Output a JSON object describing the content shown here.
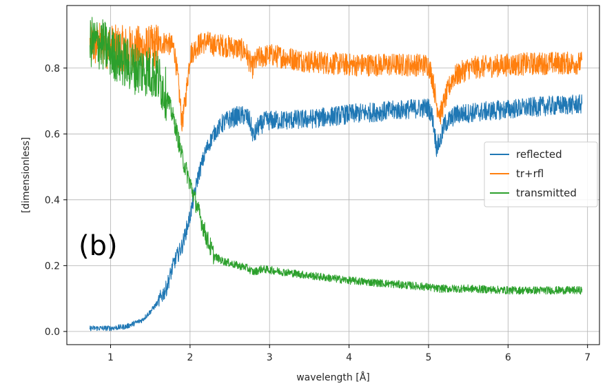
{
  "chart_data": {
    "type": "line",
    "xlabel": "wavelength [Å]",
    "ylabel": "[dimensionless]",
    "xlim": [
      0.45,
      7.15
    ],
    "ylim": [
      -0.04,
      0.99
    ],
    "x_ticks": [
      "1",
      "2",
      "3",
      "4",
      "5",
      "6",
      "7"
    ],
    "y_ticks": [
      "0.0",
      "0.2",
      "0.4",
      "0.6",
      "0.8"
    ],
    "grid": true,
    "legend_position": "center-right",
    "annotation": "(b)",
    "x_range": [
      0.74,
      6.93
    ],
    "series": [
      {
        "name": "reflected",
        "color": "#1f77b4",
        "points": [
          [
            0.74,
            0.01
          ],
          [
            1.0,
            0.01
          ],
          [
            1.2,
            0.015
          ],
          [
            1.4,
            0.035
          ],
          [
            1.5,
            0.06
          ],
          [
            1.6,
            0.09
          ],
          [
            1.7,
            0.13
          ],
          [
            1.8,
            0.21
          ],
          [
            1.9,
            0.26
          ],
          [
            2.0,
            0.35
          ],
          [
            2.1,
            0.47
          ],
          [
            2.2,
            0.55
          ],
          [
            2.3,
            0.6
          ],
          [
            2.4,
            0.63
          ],
          [
            2.5,
            0.645
          ],
          [
            2.6,
            0.655
          ],
          [
            2.7,
            0.655
          ],
          [
            2.75,
            0.64
          ],
          [
            2.8,
            0.59
          ],
          [
            2.85,
            0.62
          ],
          [
            2.95,
            0.64
          ],
          [
            3.5,
            0.645
          ],
          [
            4.0,
            0.66
          ],
          [
            4.5,
            0.67
          ],
          [
            5.0,
            0.68
          ],
          [
            5.05,
            0.65
          ],
          [
            5.1,
            0.56
          ],
          [
            5.15,
            0.58
          ],
          [
            5.2,
            0.63
          ],
          [
            5.35,
            0.66
          ],
          [
            6.0,
            0.675
          ],
          [
            6.5,
            0.685
          ],
          [
            6.93,
            0.69
          ]
        ]
      },
      {
        "name": "tr+rfl",
        "color": "#ff7f0e",
        "points": [
          [
            0.74,
            0.87
          ],
          [
            0.9,
            0.87
          ],
          [
            1.1,
            0.86
          ],
          [
            1.3,
            0.86
          ],
          [
            1.5,
            0.86
          ],
          [
            1.6,
            0.87
          ],
          [
            1.7,
            0.88
          ],
          [
            1.8,
            0.86
          ],
          [
            1.85,
            0.76
          ],
          [
            1.9,
            0.63
          ],
          [
            1.95,
            0.72
          ],
          [
            2.0,
            0.84
          ],
          [
            2.1,
            0.87
          ],
          [
            2.2,
            0.88
          ],
          [
            2.3,
            0.87
          ],
          [
            2.4,
            0.87
          ],
          [
            2.6,
            0.86
          ],
          [
            2.7,
            0.85
          ],
          [
            2.78,
            0.8
          ],
          [
            2.85,
            0.83
          ],
          [
            3.0,
            0.84
          ],
          [
            3.5,
            0.82
          ],
          [
            4.0,
            0.81
          ],
          [
            4.5,
            0.81
          ],
          [
            5.0,
            0.81
          ],
          [
            5.05,
            0.77
          ],
          [
            5.1,
            0.69
          ],
          [
            5.15,
            0.66
          ],
          [
            5.2,
            0.7
          ],
          [
            5.3,
            0.77
          ],
          [
            5.5,
            0.8
          ],
          [
            6.0,
            0.81
          ],
          [
            6.5,
            0.815
          ],
          [
            6.93,
            0.815
          ]
        ]
      },
      {
        "name": "transmitted",
        "color": "#2ca02c",
        "points": [
          [
            0.74,
            0.88
          ],
          [
            0.9,
            0.87
          ],
          [
            1.1,
            0.83
          ],
          [
            1.3,
            0.8
          ],
          [
            1.5,
            0.79
          ],
          [
            1.6,
            0.77
          ],
          [
            1.7,
            0.72
          ],
          [
            1.8,
            0.64
          ],
          [
            1.9,
            0.53
          ],
          [
            2.0,
            0.45
          ],
          [
            2.1,
            0.37
          ],
          [
            2.2,
            0.29
          ],
          [
            2.3,
            0.23
          ],
          [
            2.4,
            0.215
          ],
          [
            2.6,
            0.2
          ],
          [
            2.7,
            0.195
          ],
          [
            2.8,
            0.18
          ],
          [
            2.9,
            0.19
          ],
          [
            3.2,
            0.18
          ],
          [
            3.5,
            0.17
          ],
          [
            4.0,
            0.155
          ],
          [
            4.5,
            0.145
          ],
          [
            5.0,
            0.135
          ],
          [
            5.1,
            0.13
          ],
          [
            5.5,
            0.13
          ],
          [
            6.0,
            0.125
          ],
          [
            6.5,
            0.125
          ],
          [
            6.93,
            0.125
          ]
        ]
      }
    ]
  }
}
